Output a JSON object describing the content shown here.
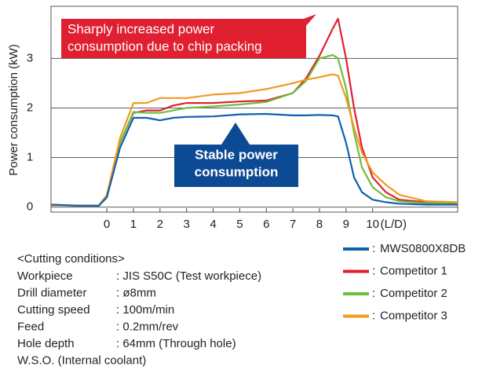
{
  "chart_data": {
    "type": "line",
    "y_label": "Power consumption (kW)",
    "x_unit": "(L/D)",
    "x": [
      -2.1,
      -1,
      -0.3,
      0,
      0.5,
      1,
      1.5,
      2,
      2.5,
      3,
      4,
      5,
      6,
      7,
      7.5,
      8,
      8.5,
      8.7,
      9,
      9.3,
      9.6,
      10,
      10.5,
      11,
      12,
      13.2
    ],
    "series": [
      {
        "name": "MWS0800X8DB",
        "color": "#1060b0",
        "values": [
          0.05,
          0.03,
          0.03,
          0.2,
          1.2,
          1.8,
          1.8,
          1.75,
          1.8,
          1.82,
          1.83,
          1.87,
          1.88,
          1.85,
          1.85,
          1.86,
          1.85,
          1.83,
          1.3,
          0.6,
          0.3,
          0.15,
          0.1,
          0.07,
          0.05,
          0.05
        ]
      },
      {
        "name": "Competitor 1",
        "color": "#e02030",
        "values": [
          0.04,
          0.03,
          0.03,
          0.2,
          1.3,
          1.9,
          1.95,
          1.95,
          2.05,
          2.1,
          2.1,
          2.13,
          2.15,
          2.3,
          2.6,
          3.05,
          3.6,
          3.8,
          3.0,
          2.0,
          1.2,
          0.6,
          0.3,
          0.15,
          0.1,
          0.07
        ]
      },
      {
        "name": "Competitor 2",
        "color": "#6cbf3c",
        "values": [
          0.04,
          0.03,
          0.03,
          0.2,
          1.3,
          1.92,
          1.9,
          1.9,
          1.95,
          2.0,
          2.03,
          2.07,
          2.12,
          2.3,
          2.55,
          3.0,
          3.07,
          3.0,
          2.4,
          1.5,
          0.8,
          0.4,
          0.2,
          0.12,
          0.08,
          0.07
        ]
      },
      {
        "name": "Competitor 3",
        "color": "#f39a1e",
        "values": [
          0.04,
          0.03,
          0.03,
          0.25,
          1.4,
          2.1,
          2.1,
          2.2,
          2.2,
          2.2,
          2.27,
          2.3,
          2.38,
          2.5,
          2.57,
          2.62,
          2.68,
          2.65,
          2.2,
          1.6,
          1.1,
          0.7,
          0.45,
          0.25,
          0.12,
          0.1
        ]
      }
    ],
    "legend_prefix": ":",
    "xlim": [
      -2.1,
      13.2
    ],
    "xticks": [
      0,
      1,
      2,
      3,
      4,
      5,
      6,
      7,
      8,
      9,
      10
    ],
    "ylim": [
      -0.1,
      4.05
    ],
    "yticks": [
      0,
      1,
      2,
      3
    ],
    "grid": true,
    "annotations": [
      {
        "lines": [
          "Sharply increased power",
          "consumption due to chip packing"
        ],
        "color": "#e02030"
      },
      {
        "lines": [
          "Stable power",
          "consumption"
        ],
        "color": "#0d4a94"
      }
    ]
  },
  "conditions": {
    "title": "<Cutting conditions>",
    "rows": [
      [
        "Workpiece",
        ": JIS S50C (Test workpiece)"
      ],
      [
        "Drill diameter",
        ": ø8mm"
      ],
      [
        "Cutting speed",
        ": 100m/min"
      ],
      [
        "Feed",
        ": 0.2mm/rev"
      ],
      [
        "Hole depth",
        ": 64mm (Through hole)"
      ],
      [
        "W.S.O. (Internal coolant)"
      ]
    ]
  }
}
